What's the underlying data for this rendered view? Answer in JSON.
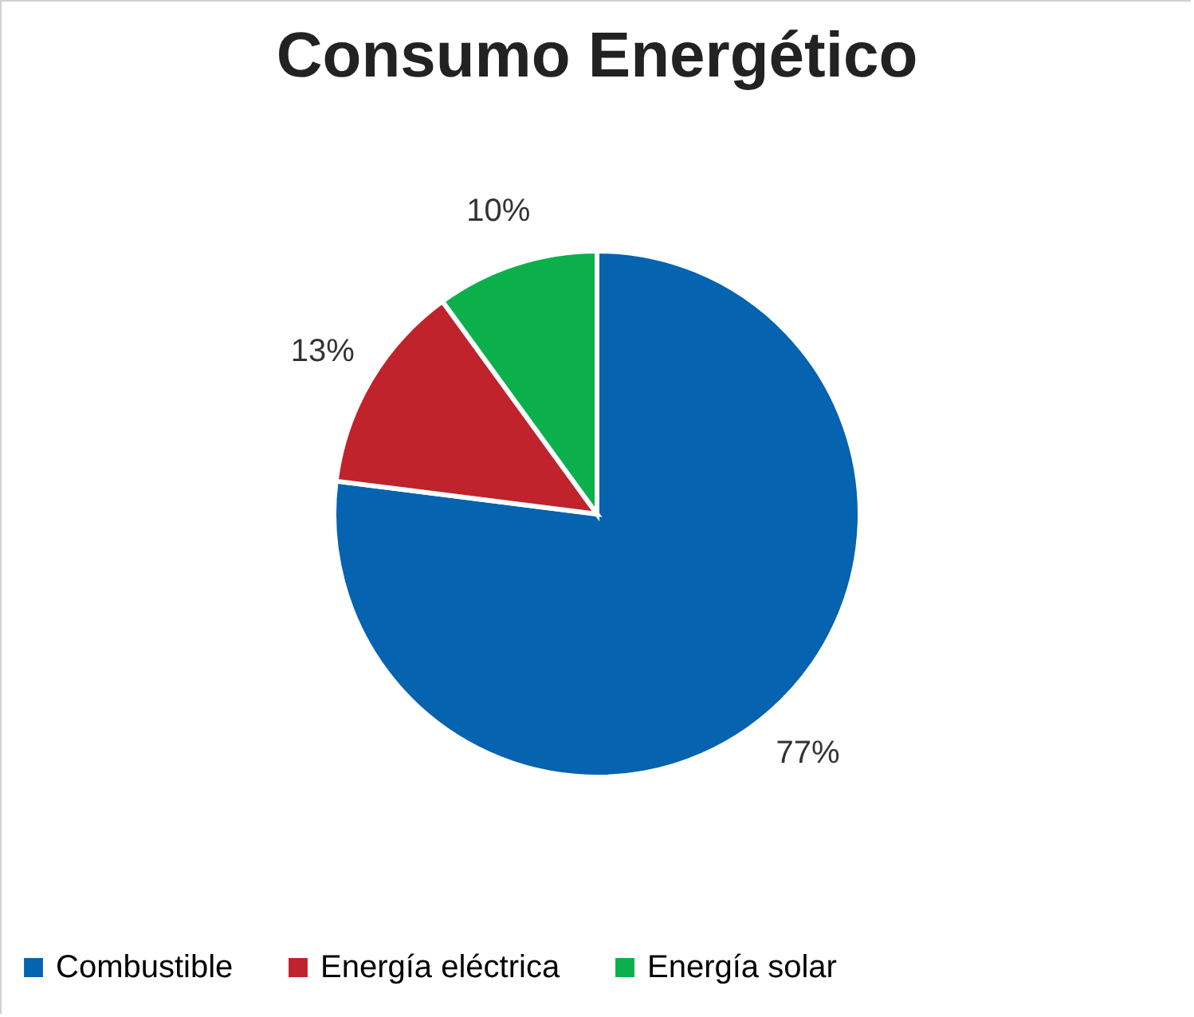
{
  "chart_data": {
    "type": "pie",
    "title": "Consumo Energético",
    "categories": [
      "Combustible",
      "Energía eléctrica",
      "Energía solar"
    ],
    "values": [
      77,
      13,
      10
    ],
    "colors": [
      "#0563b0",
      "#c0232b",
      "#0bb04b"
    ],
    "value_labels": [
      "77%",
      "13%",
      "10%"
    ],
    "legend": "bottom"
  }
}
